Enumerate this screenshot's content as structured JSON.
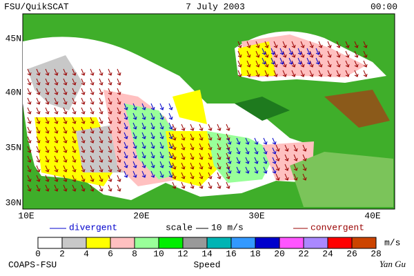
{
  "header": {
    "left": "FSU/QuikSCAT",
    "center": "7 July 2003",
    "right": "00:00"
  },
  "map": {
    "lat_labels": [
      "45N",
      "40N",
      "35N",
      "30N"
    ],
    "lon_labels": [
      "10E",
      "20E",
      "30E",
      "40E"
    ]
  },
  "legend": {
    "divergent": "divergent",
    "scale": "scale",
    "scale_value": "10 m/s",
    "convergent": "convergent",
    "divergent_color": "#0000cc",
    "convergent_color": "#990000"
  },
  "colorbar": {
    "ticks": [
      0,
      2,
      4,
      6,
      8,
      10,
      12,
      14,
      16,
      18,
      20,
      22,
      24,
      26,
      28
    ],
    "unit": "m/s",
    "label": "Speed",
    "colors": [
      "#ffffff",
      "#c8c8c8",
      "#ffff00",
      "#ffc0c0",
      "#99ff99",
      "#00ee00",
      "#999999",
      "#00b4b4",
      "#3399ff",
      "#0000cc",
      "#ff55ff",
      "#aa88ff",
      "#ff0000",
      "#cc4400",
      "#000000"
    ]
  },
  "footer": {
    "left": "COAPS-FSU",
    "right": "Yan Gu"
  }
}
